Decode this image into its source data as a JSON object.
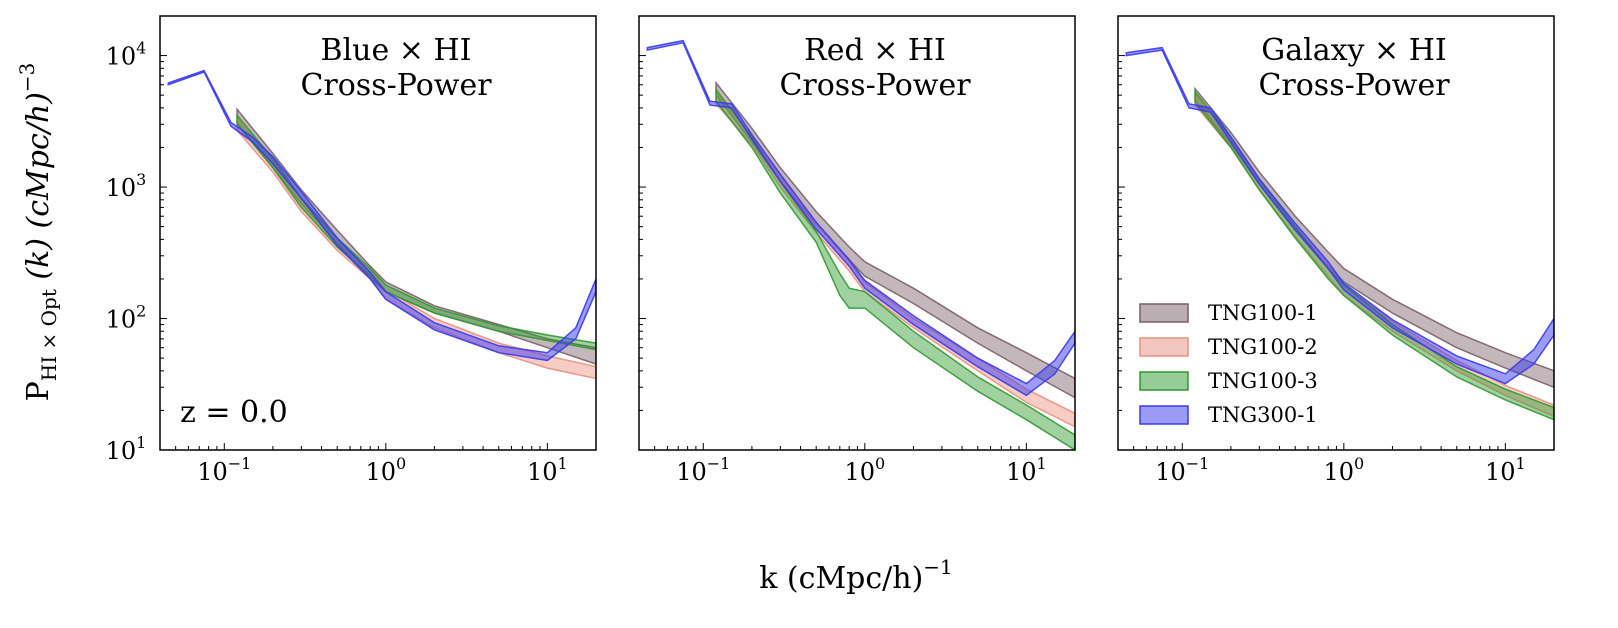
{
  "figure": {
    "ylabel_main": "P",
    "ylabel_sub": "HI × Opt",
    "ylabel_rest": " (k) (cMpc/h)",
    "ylabel_sup": "−3",
    "xlabel_main": "k (cMpc/h)",
    "xlabel_sup": "−1"
  },
  "colors": {
    "TNG100-1": "#7a5f68",
    "TNG100-2": "#e8907f",
    "TNG100-3": "#2e9a2e",
    "TNG300-1": "#3a3af0"
  },
  "chart_data": [
    {
      "type": "area",
      "title": "Blue × HI\nCross-Power",
      "title_lines": [
        "Blue × HI",
        "Cross-Power"
      ],
      "annotation": "z = 0.0",
      "xscale": "log",
      "yscale": "log",
      "xlim": [
        0.04,
        20
      ],
      "ylim": [
        10,
        20000
      ],
      "xticks": [
        0.1,
        1,
        10
      ],
      "yticks": [
        10,
        100,
        1000,
        10000
      ],
      "xticklabels": [
        [
          "10",
          "−1"
        ],
        [
          "10",
          "0"
        ],
        [
          "10",
          "1"
        ]
      ],
      "yticklabels": [
        [
          "10",
          "1"
        ],
        [
          "10",
          "2"
        ],
        [
          "10",
          "3"
        ],
        [
          "10",
          "4"
        ]
      ],
      "legend": false,
      "series": [
        {
          "name": "TNG100-1",
          "x": [
            0.12,
            0.2,
            0.3,
            0.5,
            0.8,
            1.0,
            2,
            5,
            10,
            20
          ],
          "lo": [
            3100,
            1400,
            750,
            370,
            200,
            160,
            110,
            80,
            60,
            45
          ],
          "hi": [
            3900,
            1800,
            950,
            470,
            250,
            190,
            125,
            90,
            70,
            60
          ]
        },
        {
          "name": "TNG100-2",
          "x": [
            0.12,
            0.2,
            0.3,
            0.5,
            0.8,
            1.0,
            2,
            5,
            10,
            20
          ],
          "lo": [
            2700,
            1300,
            650,
            330,
            200,
            140,
            85,
            55,
            42,
            35
          ],
          "hi": [
            3300,
            1600,
            800,
            400,
            240,
            165,
            100,
            65,
            52,
            43
          ]
        },
        {
          "name": "TNG100-3",
          "x": [
            0.12,
            0.2,
            0.3,
            0.5,
            0.8,
            1.0,
            2,
            5,
            10,
            20
          ],
          "lo": [
            3000,
            1400,
            700,
            350,
            210,
            160,
            110,
            80,
            68,
            58
          ],
          "hi": [
            3500,
            1650,
            820,
            410,
            240,
            180,
            120,
            88,
            75,
            65
          ]
        },
        {
          "name": "TNG300-1",
          "x": [
            0.045,
            0.075,
            0.11,
            0.15,
            0.2,
            0.3,
            0.5,
            0.8,
            1.0,
            2,
            5,
            10,
            15,
            20
          ],
          "lo": [
            6000,
            7500,
            2900,
            2200,
            1500,
            820,
            360,
            200,
            140,
            82,
            55,
            48,
            70,
            160
          ],
          "hi": [
            6200,
            7700,
            3100,
            2400,
            1700,
            920,
            410,
            225,
            160,
            93,
            62,
            55,
            85,
            200
          ]
        }
      ]
    },
    {
      "type": "area",
      "title": "Red × HI\nCross-Power",
      "title_lines": [
        "Red × HI",
        "Cross-Power"
      ],
      "xscale": "log",
      "yscale": "log",
      "xlim": [
        0.04,
        20
      ],
      "ylim": [
        10,
        20000
      ],
      "xticks": [
        0.1,
        1,
        10
      ],
      "yticks": [
        10,
        100,
        1000,
        10000
      ],
      "xticklabels": [
        [
          "10",
          "−1"
        ],
        [
          "10",
          "0"
        ],
        [
          "10",
          "1"
        ]
      ],
      "legend": false,
      "series": [
        {
          "name": "TNG100-1",
          "x": [
            0.12,
            0.2,
            0.3,
            0.5,
            0.8,
            1.0,
            2,
            5,
            10,
            20
          ],
          "lo": [
            5000,
            2200,
            1100,
            520,
            280,
            210,
            130,
            65,
            40,
            25
          ],
          "hi": [
            6200,
            2800,
            1400,
            650,
            350,
            270,
            170,
            85,
            55,
            35
          ]
        },
        {
          "name": "TNG100-2",
          "x": [
            0.12,
            0.2,
            0.3,
            0.5,
            0.8,
            1.0,
            2,
            5,
            10,
            20
          ],
          "lo": [
            4300,
            2100,
            1000,
            450,
            230,
            160,
            85,
            40,
            23,
            15
          ],
          "hi": [
            5200,
            2500,
            1200,
            530,
            270,
            190,
            100,
            50,
            29,
            19
          ]
        },
        {
          "name": "TNG100-3",
          "x": [
            0.12,
            0.2,
            0.3,
            0.5,
            0.7,
            0.8,
            1.0,
            2,
            5,
            10,
            20
          ],
          "lo": [
            4500,
            2000,
            900,
            380,
            150,
            120,
            120,
            60,
            28,
            17,
            10
          ],
          "hi": [
            5500,
            2400,
            1100,
            460,
            220,
            170,
            160,
            80,
            36,
            22,
            13
          ]
        },
        {
          "name": "TNG300-1",
          "x": [
            0.045,
            0.075,
            0.11,
            0.15,
            0.2,
            0.3,
            0.5,
            0.8,
            1.0,
            2,
            5,
            10,
            15,
            20
          ],
          "lo": [
            11000,
            12500,
            4200,
            4000,
            2300,
            1100,
            480,
            250,
            170,
            90,
            43,
            26,
            38,
            65
          ],
          "hi": [
            11500,
            13000,
            4500,
            4300,
            2500,
            1250,
            540,
            280,
            195,
            105,
            50,
            32,
            48,
            80
          ]
        }
      ]
    },
    {
      "type": "area",
      "title": "Galaxy × HI\nCross-Power",
      "title_lines": [
        "Galaxy × HI",
        "Cross-Power"
      ],
      "xscale": "log",
      "yscale": "log",
      "xlim": [
        0.04,
        20
      ],
      "ylim": [
        10,
        20000
      ],
      "xticks": [
        0.1,
        1,
        10
      ],
      "yticks": [
        10,
        100,
        1000,
        10000
      ],
      "xticklabels": [
        [
          "10",
          "−1"
        ],
        [
          "10",
          "0"
        ],
        [
          "10",
          "1"
        ]
      ],
      "legend": true,
      "legend_position": "lower-left",
      "legend_entries": [
        "TNG100-1",
        "TNG100-2",
        "TNG100-3",
        "TNG300-1"
      ],
      "series": [
        {
          "name": "TNG100-1",
          "x": [
            0.12,
            0.2,
            0.3,
            0.5,
            0.8,
            1.0,
            2,
            5,
            10,
            20
          ],
          "lo": [
            4600,
            2100,
            1050,
            480,
            250,
            190,
            110,
            60,
            42,
            30
          ],
          "hi": [
            5600,
            2600,
            1300,
            600,
            320,
            240,
            140,
            78,
            55,
            40
          ]
        },
        {
          "name": "TNG100-2",
          "x": [
            0.12,
            0.2,
            0.3,
            0.5,
            0.8,
            1.0,
            2,
            5,
            10,
            20
          ],
          "lo": [
            4200,
            2000,
            950,
            420,
            210,
            150,
            80,
            40,
            26,
            18
          ],
          "hi": [
            5000,
            2400,
            1150,
            500,
            250,
            180,
            95,
            48,
            31,
            22
          ]
        },
        {
          "name": "TNG100-3",
          "x": [
            0.12,
            0.2,
            0.3,
            0.5,
            0.8,
            1.0,
            2,
            5,
            10,
            20
          ],
          "lo": [
            4400,
            2000,
            950,
            410,
            200,
            150,
            75,
            36,
            24,
            17
          ],
          "hi": [
            5300,
            2400,
            1150,
            500,
            240,
            180,
            90,
            43,
            29,
            21
          ]
        },
        {
          "name": "TNG300-1",
          "x": [
            0.045,
            0.075,
            0.11,
            0.15,
            0.2,
            0.3,
            0.5,
            0.8,
            1.0,
            2,
            5,
            10,
            15,
            20
          ],
          "lo": [
            10000,
            11000,
            4000,
            3700,
            2200,
            1050,
            470,
            240,
            165,
            85,
            45,
            32,
            45,
            75
          ],
          "hi": [
            10500,
            11500,
            4300,
            4000,
            2400,
            1150,
            530,
            270,
            185,
            98,
            52,
            38,
            58,
            100
          ]
        }
      ]
    }
  ]
}
